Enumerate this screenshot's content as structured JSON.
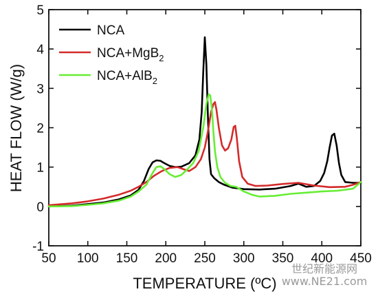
{
  "chart_data": {
    "type": "line",
    "xlabel": "TEMPERATURE (ºC)",
    "ylabel": "HEAT FLOW (W/g)",
    "xlim": [
      50,
      450
    ],
    "ylim": [
      -1,
      5
    ],
    "xticks": [
      50,
      100,
      150,
      200,
      250,
      300,
      350,
      400,
      450
    ],
    "yticks": [
      -1,
      0,
      1,
      2,
      3,
      4,
      5
    ],
    "grid": false,
    "legend_position": "top-left",
    "series": [
      {
        "name": "NCA",
        "label_base": "NCA",
        "label_sub": "",
        "color": "#000000",
        "x": [
          50,
          80,
          100,
          120,
          140,
          155,
          165,
          172,
          178,
          183,
          188,
          193,
          198,
          205,
          212,
          220,
          230,
          238,
          243,
          246,
          248,
          250,
          252,
          254,
          256,
          258,
          262,
          268,
          275,
          285,
          300,
          320,
          340,
          360,
          370,
          380,
          390,
          398,
          403,
          407,
          410,
          413,
          416,
          419,
          422,
          425,
          430,
          440,
          450
        ],
        "y": [
          0.0,
          0.02,
          0.06,
          0.1,
          0.18,
          0.28,
          0.42,
          0.65,
          0.95,
          1.12,
          1.17,
          1.16,
          1.1,
          1.03,
          1.0,
          1.01,
          1.1,
          1.3,
          1.7,
          2.4,
          3.4,
          4.3,
          3.6,
          2.3,
          1.2,
          0.82,
          0.72,
          0.62,
          0.55,
          0.48,
          0.44,
          0.43,
          0.45,
          0.52,
          0.58,
          0.5,
          0.52,
          0.65,
          0.85,
          1.15,
          1.5,
          1.8,
          1.85,
          1.55,
          1.1,
          0.8,
          0.62,
          0.6,
          0.6
        ]
      },
      {
        "name": "NCA+MgB2",
        "label_base": "NCA+MgB",
        "label_sub": "2",
        "color": "#d42a2a",
        "x": [
          50,
          80,
          100,
          120,
          140,
          155,
          165,
          175,
          185,
          195,
          205,
          215,
          222,
          230,
          238,
          245,
          250,
          254,
          258,
          261,
          263,
          265,
          268,
          272,
          276,
          280,
          284,
          287,
          289,
          291,
          294,
          298,
          305,
          315,
          330,
          350,
          370,
          390,
          410,
          430,
          440,
          450
        ],
        "y": [
          0.03,
          0.08,
          0.13,
          0.2,
          0.3,
          0.4,
          0.5,
          0.62,
          0.78,
          0.9,
          0.98,
          1.0,
          0.95,
          0.9,
          1.0,
          1.2,
          1.5,
          1.9,
          2.4,
          2.6,
          2.65,
          2.45,
          2.0,
          1.55,
          1.42,
          1.48,
          1.7,
          2.02,
          2.05,
          1.75,
          1.15,
          0.75,
          0.58,
          0.52,
          0.53,
          0.57,
          0.6,
          0.53,
          0.49,
          0.5,
          0.55,
          0.62
        ]
      },
      {
        "name": "NCA+AlB2",
        "label_base": "NCA+AlB",
        "label_sub": "2",
        "color": "#66ee33",
        "x": [
          50,
          80,
          100,
          120,
          140,
          155,
          165,
          175,
          183,
          188,
          193,
          198,
          205,
          212,
          220,
          228,
          235,
          242,
          248,
          252,
          255,
          257,
          259,
          261,
          263,
          266,
          270,
          276,
          283,
          290,
          300,
          310,
          320,
          340,
          360,
          380,
          400,
          420,
          440,
          450
        ],
        "y": [
          0.0,
          0.01,
          0.04,
          0.08,
          0.15,
          0.25,
          0.38,
          0.55,
          0.85,
          1.0,
          1.02,
          0.95,
          0.82,
          0.75,
          0.8,
          0.95,
          1.1,
          1.4,
          2.0,
          2.6,
          2.85,
          2.82,
          2.5,
          1.9,
          1.4,
          1.0,
          0.75,
          0.6,
          0.52,
          0.5,
          0.38,
          0.3,
          0.25,
          0.27,
          0.32,
          0.35,
          0.38,
          0.4,
          0.45,
          0.62
        ]
      }
    ]
  },
  "watermark": {
    "line1": "世纪新能源网",
    "line2": "www.NE21.com"
  }
}
